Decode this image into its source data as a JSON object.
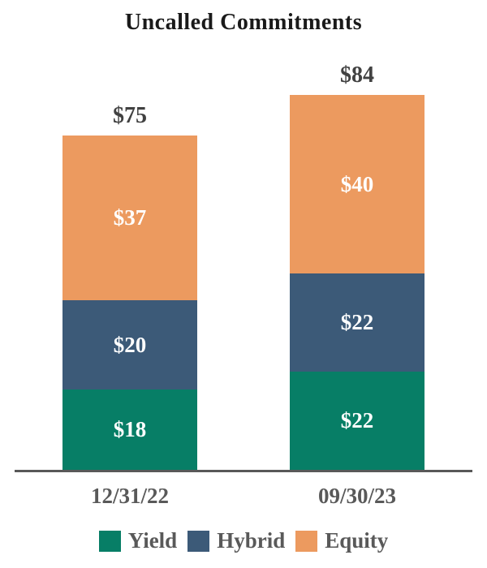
{
  "title": "Uncalled Commitments",
  "chart_data": {
    "type": "bar",
    "stacked": true,
    "title": "Uncalled Commitments",
    "categories": [
      "12/31/22",
      "09/30/23"
    ],
    "series": [
      {
        "name": "Yield",
        "color": "#077E66",
        "values": [
          18,
          22
        ]
      },
      {
        "name": "Hybrid",
        "color": "#3C5A78",
        "values": [
          20,
          22
        ]
      },
      {
        "name": "Equity",
        "color": "#EC9A5F",
        "values": [
          37,
          40
        ]
      }
    ],
    "segment_labels": [
      [
        "$18",
        "$20",
        "$37"
      ],
      [
        "$22",
        "$22",
        "$40"
      ]
    ],
    "totals": [
      "$75",
      "$84"
    ],
    "total_values": [
      75,
      84
    ],
    "xlabel": "",
    "ylabel": "",
    "ylim": [
      0,
      90
    ],
    "grid": false,
    "legend_position": "bottom",
    "axis_line_color": "#595959",
    "category_label_color": "#595959",
    "total_label_color": "#414141",
    "segment_label_color": "#ffffff",
    "title_color": "#1a1a1a"
  },
  "legend": {
    "items": [
      {
        "label": "Yield",
        "color": "#077E66"
      },
      {
        "label": "Hybrid",
        "color": "#3C5A78"
      },
      {
        "label": "Equity",
        "color": "#EC9A5F"
      }
    ]
  }
}
